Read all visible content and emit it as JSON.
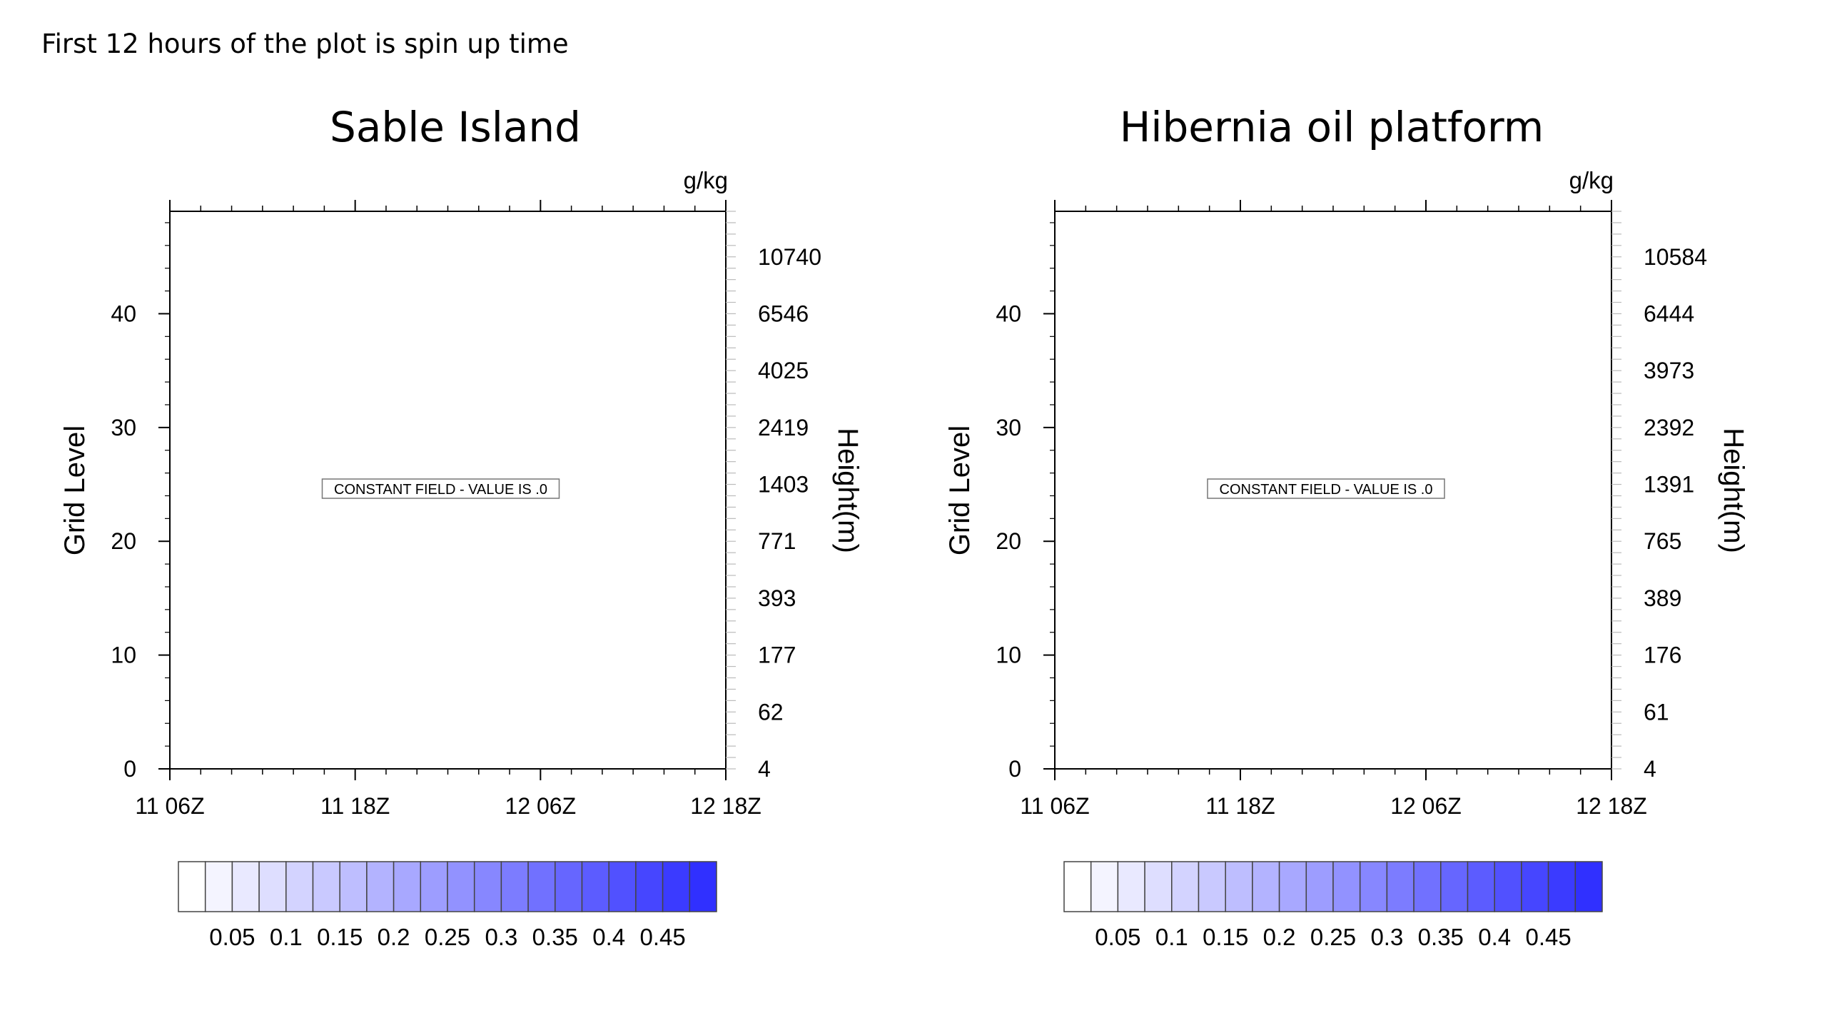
{
  "page": {
    "caption": "First 12 hours of the plot is spin up time"
  },
  "chart_data": [
    {
      "type": "heatmap",
      "title": "Sable Island",
      "units": "g/kg",
      "xlabel": "",
      "ylabel": "Grid Level",
      "y2label": "Height(m)",
      "x_ticks": [
        "11 06Z",
        "11 18Z",
        "12 06Z",
        "12 18Z"
      ],
      "ylim": [
        0,
        49
      ],
      "y_ticks": [
        0,
        10,
        20,
        30,
        40
      ],
      "height_ticks": [
        {
          "level": 0,
          "label": "4"
        },
        {
          "level": 5,
          "label": "62"
        },
        {
          "level": 10,
          "label": "177"
        },
        {
          "level": 15,
          "label": "393"
        },
        {
          "level": 20,
          "label": "771"
        },
        {
          "level": 25,
          "label": "1403"
        },
        {
          "level": 30,
          "label": "2419"
        },
        {
          "level": 35,
          "label": "4025"
        },
        {
          "level": 40,
          "label": "6546"
        },
        {
          "level": 45,
          "label": "10740"
        }
      ],
      "annotation": "CONSTANT FIELD - VALUE IS .0",
      "field_value": 0,
      "colorbar": {
        "labels": [
          "0.05",
          "0.1",
          "0.15",
          "0.2",
          "0.25",
          "0.3",
          "0.35",
          "0.4",
          "0.45"
        ],
        "boxes": 20,
        "low_color": "#ffffff",
        "high_color": "#3030ff"
      }
    },
    {
      "type": "heatmap",
      "title": "Hibernia oil platform",
      "units": "g/kg",
      "xlabel": "",
      "ylabel": "Grid Level",
      "y2label": "Height(m)",
      "x_ticks": [
        "11 06Z",
        "11 18Z",
        "12 06Z",
        "12 18Z"
      ],
      "ylim": [
        0,
        49
      ],
      "y_ticks": [
        0,
        10,
        20,
        30,
        40
      ],
      "height_ticks": [
        {
          "level": 0,
          "label": "4"
        },
        {
          "level": 5,
          "label": "61"
        },
        {
          "level": 10,
          "label": "176"
        },
        {
          "level": 15,
          "label": "389"
        },
        {
          "level": 20,
          "label": "765"
        },
        {
          "level": 25,
          "label": "1391"
        },
        {
          "level": 30,
          "label": "2392"
        },
        {
          "level": 35,
          "label": "3973"
        },
        {
          "level": 40,
          "label": "6444"
        },
        {
          "level": 45,
          "label": "10584"
        }
      ],
      "annotation": "CONSTANT FIELD - VALUE IS .0",
      "field_value": 0,
      "colorbar": {
        "labels": [
          "0.05",
          "0.1",
          "0.15",
          "0.2",
          "0.25",
          "0.3",
          "0.35",
          "0.4",
          "0.45"
        ],
        "boxes": 20,
        "low_color": "#ffffff",
        "high_color": "#3030ff"
      }
    }
  ]
}
